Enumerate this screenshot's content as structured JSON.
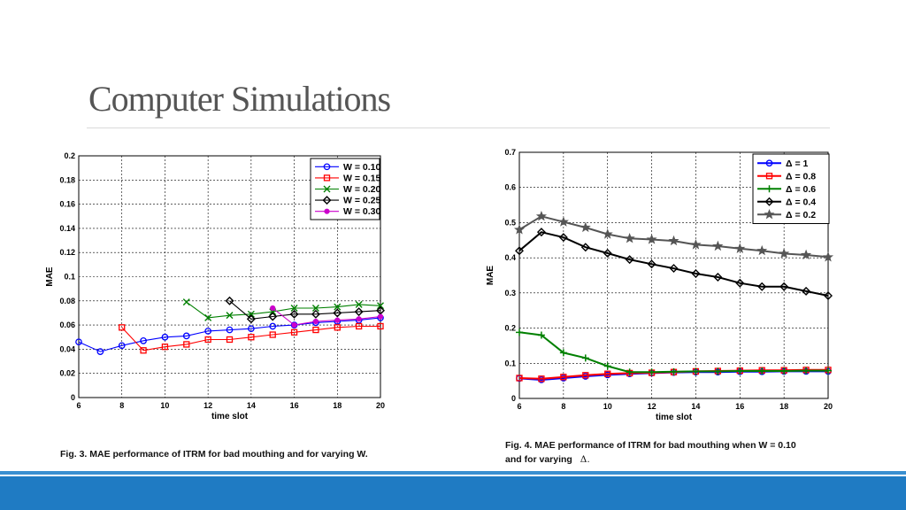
{
  "slide": {
    "title": "Computer Simulations",
    "caption_left": "Fig. 3. MAE performance of ITRM for bad mouthing and for varying W.",
    "caption_right_line1": "Fig. 4. MAE performance of ITRM for bad mouthing when W = 0.10",
    "caption_right_line2": "and for varying",
    "caption_right_symbol": "Δ."
  },
  "colors": {
    "footer": "#1f7bc3",
    "footer_thin": "#3a8fd0",
    "title": "#555555"
  },
  "chart_data": [
    {
      "type": "line",
      "xlabel": "time slot",
      "ylabel": "MAE",
      "xlim": [
        6,
        20
      ],
      "ylim": [
        0,
        0.2
      ],
      "xticks": [
        6,
        8,
        10,
        12,
        14,
        16,
        18,
        20
      ],
      "yticks": [
        0,
        0.02,
        0.04,
        0.06,
        0.08,
        0.1,
        0.12,
        0.14,
        0.16,
        0.18,
        0.2
      ],
      "ytick_labels": [
        "0",
        "0.02",
        "0.04",
        "0.06",
        "0.08",
        "0.1",
        "0.12",
        "0.14",
        "0.16",
        "0.18",
        "0.2"
      ],
      "grid": true,
      "legend": "top-right",
      "series": [
        {
          "name": "W = 0.10",
          "color": "#0000ff",
          "marker": "circle",
          "x": [
            6,
            7,
            8,
            9,
            10,
            11,
            12,
            13,
            14,
            15,
            16,
            17,
            18,
            19,
            20
          ],
          "y": [
            0.046,
            0.038,
            0.043,
            0.047,
            0.05,
            0.051,
            0.055,
            0.056,
            0.057,
            0.059,
            0.06,
            0.062,
            0.063,
            0.064,
            0.066
          ]
        },
        {
          "name": "W = 0.15",
          "color": "#ff0000",
          "marker": "square",
          "x": [
            8,
            9,
            10,
            11,
            12,
            13,
            14,
            15,
            16,
            17,
            18,
            19,
            20
          ],
          "y": [
            0.058,
            0.039,
            0.042,
            0.044,
            0.048,
            0.048,
            0.05,
            0.052,
            0.054,
            0.056,
            0.058,
            0.059,
            0.059
          ]
        },
        {
          "name": "W = 0.20",
          "color": "#008000",
          "marker": "x",
          "x": [
            11,
            12,
            13,
            14,
            15,
            16,
            17,
            18,
            19,
            20
          ],
          "y": [
            0.079,
            0.066,
            0.068,
            0.069,
            0.071,
            0.074,
            0.074,
            0.075,
            0.077,
            0.076
          ]
        },
        {
          "name": "W = 0.25",
          "color": "#000000",
          "marker": "diamond",
          "x": [
            13,
            14,
            15,
            16,
            17,
            18,
            19,
            20
          ],
          "y": [
            0.08,
            0.065,
            0.067,
            0.069,
            0.069,
            0.07,
            0.071,
            0.072
          ]
        },
        {
          "name": "W = 0.30",
          "color": "#cc00cc",
          "marker": "dot",
          "x": [
            15,
            16,
            17,
            18,
            19,
            20
          ],
          "y": [
            0.074,
            0.06,
            0.063,
            0.064,
            0.065,
            0.067
          ]
        }
      ]
    },
    {
      "type": "line",
      "xlabel": "time slot",
      "ylabel": "MAE",
      "xlim": [
        6,
        20
      ],
      "ylim": [
        0,
        0.7
      ],
      "xticks": [
        6,
        8,
        10,
        12,
        14,
        16,
        18,
        20
      ],
      "yticks": [
        0,
        0.1,
        0.2,
        0.3,
        0.4,
        0.5,
        0.6,
        0.7
      ],
      "ytick_labels": [
        "0",
        "0.1",
        "0.2",
        "0.3",
        "0.4",
        "0.5",
        "0.6",
        "0.7"
      ],
      "grid": true,
      "legend": "top-right",
      "series": [
        {
          "name": "Δ = 1",
          "color": "#0000ff",
          "marker": "circle",
          "x": [
            6,
            7,
            8,
            9,
            10,
            11,
            12,
            13,
            14,
            15,
            16,
            17,
            18,
            19,
            20
          ],
          "y": [
            0.057,
            0.053,
            0.058,
            0.063,
            0.067,
            0.07,
            0.072,
            0.074,
            0.075,
            0.075,
            0.076,
            0.076,
            0.077,
            0.077,
            0.077
          ]
        },
        {
          "name": "Δ = 0.8",
          "color": "#ff0000",
          "marker": "square",
          "x": [
            6,
            7,
            8,
            9,
            10,
            11,
            12,
            13,
            14,
            15,
            16,
            17,
            18,
            19,
            20
          ],
          "y": [
            0.058,
            0.056,
            0.061,
            0.066,
            0.07,
            0.072,
            0.073,
            0.075,
            0.077,
            0.078,
            0.079,
            0.08,
            0.08,
            0.081,
            0.081
          ]
        },
        {
          "name": "Δ = 0.6",
          "color": "#008000",
          "marker": "plus",
          "x": [
            6,
            7,
            8,
            9,
            10,
            11,
            12,
            13,
            14,
            15,
            16,
            17,
            18,
            19,
            20
          ],
          "y": [
            0.188,
            0.18,
            0.13,
            0.115,
            0.092,
            0.075,
            0.075,
            0.076,
            0.077,
            0.077,
            0.078,
            0.078,
            0.078,
            0.079,
            0.079
          ]
        },
        {
          "name": "Δ = 0.4",
          "color": "#000000",
          "marker": "diamond",
          "x": [
            6,
            7,
            8,
            9,
            10,
            11,
            12,
            13,
            14,
            15,
            16,
            17,
            18,
            19,
            20
          ],
          "y": [
            0.42,
            0.473,
            0.458,
            0.43,
            0.413,
            0.395,
            0.382,
            0.37,
            0.355,
            0.345,
            0.328,
            0.318,
            0.318,
            0.305,
            0.292
          ]
        },
        {
          "name": "Δ = 0.2",
          "color": "#555555",
          "marker": "star",
          "x": [
            6,
            7,
            8,
            9,
            10,
            11,
            12,
            13,
            14,
            15,
            16,
            17,
            18,
            19,
            20
          ],
          "y": [
            0.48,
            0.518,
            0.502,
            0.486,
            0.467,
            0.455,
            0.452,
            0.448,
            0.437,
            0.433,
            0.426,
            0.42,
            0.412,
            0.408,
            0.402
          ]
        }
      ]
    }
  ]
}
